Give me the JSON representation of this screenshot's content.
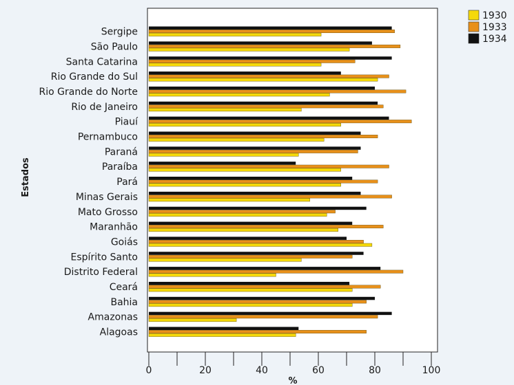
{
  "chart_data": {
    "type": "bar",
    "orientation": "horizontal",
    "categories": [
      "Sergipe",
      "São Paulo",
      "Santa Catarina",
      "Rio Grande do Sul",
      "Rio Grande do Norte",
      "Rio de Janeiro",
      "Piauí",
      "Pernambuco",
      "Paraná",
      "Paraíba",
      "Pará",
      "Minas Gerais",
      "Mato Grosso",
      "Maranhão",
      "Goiás",
      "Espírito Santo",
      "Distrito Federal",
      "Ceará",
      "Bahia",
      "Amazonas",
      "Alagoas"
    ],
    "series": [
      {
        "name": "1930",
        "color": "#f5d90a",
        "values": [
          61,
          71,
          61,
          81,
          64,
          54,
          68,
          62,
          53,
          68,
          68,
          57,
          63,
          67,
          79,
          54,
          45,
          72,
          72,
          31,
          52
        ]
      },
      {
        "name": "1933",
        "color": "#e8901a",
        "values": [
          87,
          89,
          73,
          85,
          91,
          83,
          93,
          81,
          74,
          85,
          81,
          86,
          66,
          83,
          76,
          72,
          90,
          82,
          77,
          81,
          77
        ]
      },
      {
        "name": "1934",
        "color": "#111111",
        "values": [
          86,
          79,
          86,
          68,
          80,
          81,
          85,
          75,
          75,
          52,
          72,
          75,
          77,
          72,
          70,
          76,
          82,
          71,
          80,
          86,
          53
        ]
      }
    ],
    "xlabel": "%",
    "ylabel": "Estados",
    "xlim": [
      0,
      100
    ],
    "xticks": [
      "0",
      "20",
      "40",
      "60",
      "80",
      "100"
    ],
    "grid": false,
    "legend_position": "top-right"
  }
}
